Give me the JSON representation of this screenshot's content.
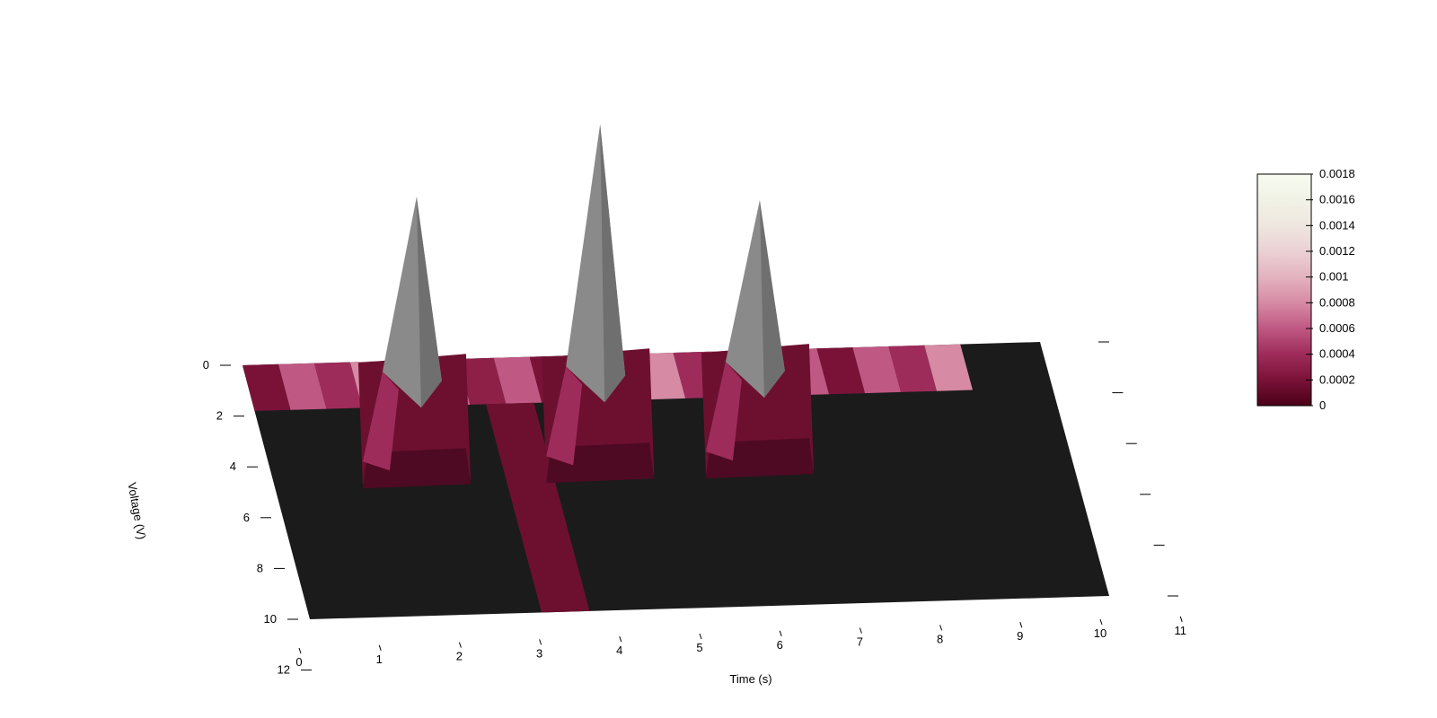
{
  "chart_data": {
    "type": "surface",
    "title": "",
    "xlabel": "Time (s)",
    "ylabel": "Voltage (V)",
    "zlabel": "",
    "x_ticks": [
      "0",
      "1",
      "2",
      "3",
      "4",
      "5",
      "6",
      "7",
      "8",
      "9",
      "10",
      "11"
    ],
    "y_ticks": [
      "0",
      "2",
      "4",
      "6",
      "8",
      "10",
      "12"
    ],
    "xlim": [
      0,
      11
    ],
    "ylim": [
      0,
      12
    ],
    "colorbar": {
      "ticks": [
        "0",
        "0.0002",
        "0.0004",
        "0.0006",
        "0.0008",
        "0.001",
        "0.0012",
        "0.0014",
        "0.0016",
        "0.0018"
      ],
      "min": 0,
      "max": 0.0018,
      "colors": [
        "#4a0018",
        "#7a1238",
        "#9e2c5a",
        "#bf5882",
        "#d68aa4",
        "#e3b3c0",
        "#ebd1d4",
        "#eee6df",
        "#f1f2e6",
        "#f6fbf0"
      ]
    },
    "peaks": [
      {
        "time": 2.0,
        "height": 0.0015
      },
      {
        "time": 4.3,
        "height": 0.002
      },
      {
        "time": 6.3,
        "height": 0.0014
      }
    ],
    "ridge": {
      "time": 3.2
    },
    "colors": {
      "floor": "#1b1b1b",
      "wall": "#6d1030",
      "wall_dark": "#4e0a22",
      "peak_gray": "#8a8a8a"
    }
  }
}
